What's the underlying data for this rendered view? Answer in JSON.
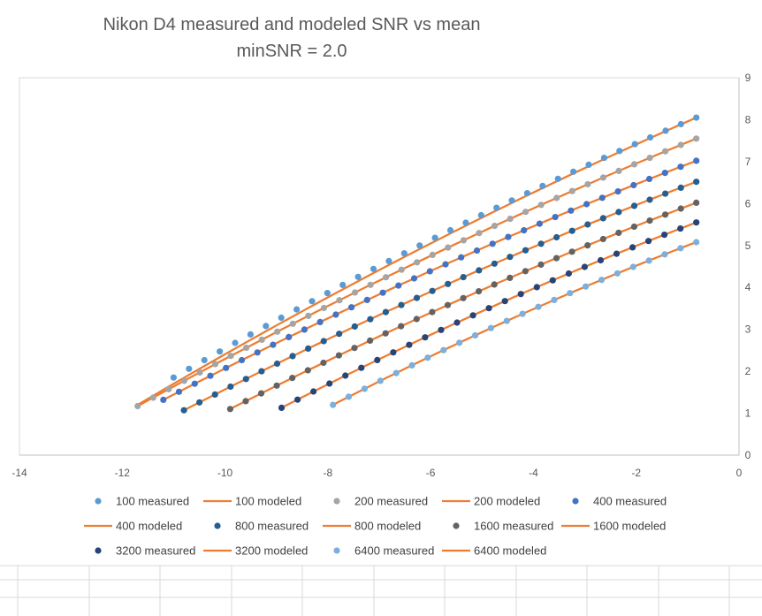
{
  "chart_data": {
    "type": "scatter",
    "title": "Nikon D4 measured and modeled SNR vs mean",
    "subtitle": "minSNR = 2.0",
    "xlabel": "",
    "ylabel": "",
    "xlim": [
      -14,
      0
    ],
    "ylim": [
      0,
      9
    ],
    "x_ticks": [
      "-14",
      "-12",
      "-10",
      "-8",
      "-6",
      "-4",
      "-2",
      "0"
    ],
    "y_ticks": [
      "0",
      "1",
      "2",
      "3",
      "4",
      "5",
      "6",
      "7",
      "8",
      "9"
    ],
    "grid": false,
    "y_axis_side": "right",
    "legend_position": "bottom",
    "series": [
      {
        "name": "100 measured",
        "kind": "marker",
        "color": "#5b9bd5",
        "x_start": -11.0,
        "x_end": -0.83,
        "y_start": 1.85,
        "y_end": 8.05
      },
      {
        "name": "100 modeled",
        "kind": "line",
        "color": "#ed7d31",
        "x_start": -11.7,
        "x_end": -0.83,
        "y_start": 1.2,
        "y_end": 8.05
      },
      {
        "name": "200 measured",
        "kind": "marker",
        "color": "#a5a5a5",
        "x_start": -11.7,
        "x_end": -0.83,
        "y_start": 1.17,
        "y_end": 7.55
      },
      {
        "name": "200 modeled",
        "kind": "line",
        "color": "#ed7d31",
        "x_start": -11.7,
        "x_end": -0.83,
        "y_start": 1.17,
        "y_end": 7.55
      },
      {
        "name": "400 measured",
        "kind": "marker",
        "color": "#4472c4",
        "x_start": -11.2,
        "x_end": -0.83,
        "y_start": 1.32,
        "y_end": 7.02
      },
      {
        "name": "400 modeled",
        "kind": "line",
        "color": "#ed7d31",
        "x_start": -11.2,
        "x_end": -0.83,
        "y_start": 1.32,
        "y_end": 7.02
      },
      {
        "name": "800 measured",
        "kind": "marker",
        "color": "#255e91",
        "x_start": -10.8,
        "x_end": -0.83,
        "y_start": 1.07,
        "y_end": 6.52
      },
      {
        "name": "800 modeled",
        "kind": "line",
        "color": "#ed7d31",
        "x_start": -10.8,
        "x_end": -0.83,
        "y_start": 1.07,
        "y_end": 6.52
      },
      {
        "name": "1600 measured",
        "kind": "marker",
        "color": "#636363",
        "x_start": -9.9,
        "x_end": -0.83,
        "y_start": 1.1,
        "y_end": 6.02
      },
      {
        "name": "1600 modeled",
        "kind": "line",
        "color": "#ed7d31",
        "x_start": -9.9,
        "x_end": -0.83,
        "y_start": 1.1,
        "y_end": 6.02
      },
      {
        "name": "3200 measured",
        "kind": "marker",
        "color": "#264478",
        "x_start": -8.9,
        "x_end": -0.83,
        "y_start": 1.13,
        "y_end": 5.55
      },
      {
        "name": "3200 modeled",
        "kind": "line",
        "color": "#ed7d31",
        "x_start": -8.9,
        "x_end": -0.83,
        "y_start": 1.13,
        "y_end": 5.55
      },
      {
        "name": "6400 measured",
        "kind": "marker",
        "color": "#7cafdd",
        "x_start": -7.9,
        "x_end": -0.83,
        "y_start": 1.2,
        "y_end": 5.08
      },
      {
        "name": "6400 modeled",
        "kind": "line",
        "color": "#ed7d31",
        "x_start": -7.9,
        "x_end": -0.83,
        "y_start": 1.2,
        "y_end": 5.08
      }
    ]
  }
}
